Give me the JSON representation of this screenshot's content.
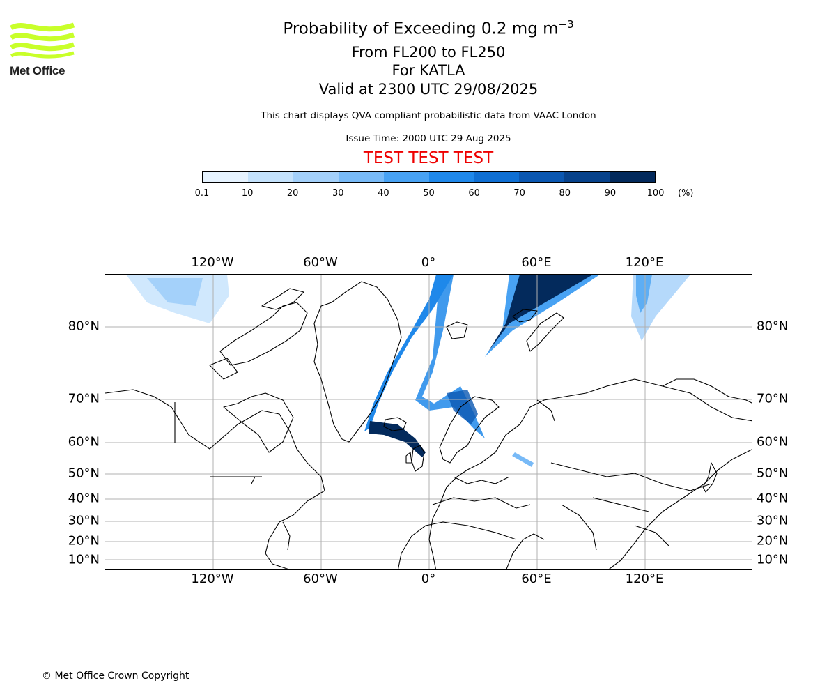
{
  "logo": {
    "text": "Met Office",
    "color": "#c8ff2a"
  },
  "title": {
    "main_prefix": "Probability of Exceeding 0.2 mg m",
    "main_exponent": "−3",
    "levels": "From FL200 to FL250",
    "volcano": "For KATLA",
    "valid": "Valid at 2300 UTC 29/08/2025",
    "description": "This chart displays QVA compliant probabilistic data from VAAC London",
    "issue": "Issue Time: 2000 UTC 29 Aug 2025",
    "test_banner": "TEST TEST TEST"
  },
  "colorbar": {
    "ticks": [
      "0.1",
      "10",
      "20",
      "30",
      "40",
      "50",
      "60",
      "70",
      "80",
      "90",
      "100"
    ],
    "unit": "(%)",
    "colors": [
      "#e6f3ff",
      "#c4e2fc",
      "#a3d0fa",
      "#78baf7",
      "#48a2f3",
      "#1f88ea",
      "#0f6fd3",
      "#0b57b1",
      "#07428b",
      "#032a5c"
    ]
  },
  "map": {
    "lon_labels": [
      "120°W",
      "60°W",
      "0°",
      "60°E",
      "120°E"
    ],
    "lat_labels": [
      "80°N",
      "70°N",
      "60°N",
      "50°N",
      "40°N",
      "30°N",
      "20°N",
      "10°N"
    ],
    "grid_color": "#b0b0b0",
    "coast_color": "#000000"
  },
  "copyright": "© Met Office Crown Copyright"
}
